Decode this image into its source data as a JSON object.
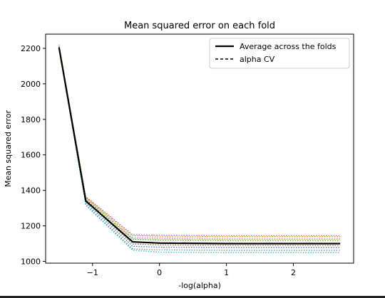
{
  "chart_data": {
    "type": "line",
    "title": "Mean squared error on each fold",
    "xlabel": "-log(alpha)",
    "ylabel": "Mean squared error",
    "xlim": [
      -1.7,
      2.9
    ],
    "ylim": [
      990,
      2280
    ],
    "xticks": [
      -1,
      0,
      1,
      2
    ],
    "xtick_labels": [
      "−1",
      "0",
      "1",
      "2"
    ],
    "yticks": [
      1000,
      1200,
      1400,
      1600,
      1800,
      2000,
      2200
    ],
    "yticks_labels": [
      "1000",
      "1200",
      "1400",
      "1600",
      "1800",
      "2000",
      "2200"
    ],
    "x": [
      -1.5,
      -1.1,
      -0.4,
      0.0,
      1.0,
      2.0,
      2.7
    ],
    "folds": [
      {
        "color": "#1f77b4",
        "values": [
          2200,
          1330,
          1085,
          1080,
          1078,
          1078,
          1078
        ]
      },
      {
        "color": "#ff7f0e",
        "values": [
          2215,
          1360,
          1145,
          1142,
          1140,
          1140,
          1140
        ]
      },
      {
        "color": "#2ca02c",
        "values": [
          2210,
          1350,
          1125,
          1120,
          1118,
          1118,
          1118
        ]
      },
      {
        "color": "#d62728",
        "values": [
          2205,
          1345,
          1110,
          1105,
          1103,
          1103,
          1103
        ]
      },
      {
        "color": "#9467bd",
        "values": [
          2212,
          1365,
          1150,
          1147,
          1145,
          1145,
          1145
        ]
      },
      {
        "color": "#8c564b",
        "values": [
          2203,
          1340,
          1098,
          1093,
          1090,
          1090,
          1090
        ]
      },
      {
        "color": "#e377c2",
        "values": [
          2208,
          1355,
          1135,
          1132,
          1130,
          1130,
          1130
        ]
      },
      {
        "color": "#7f7f7f",
        "values": [
          2198,
          1320,
          1070,
          1065,
          1062,
          1062,
          1062
        ]
      },
      {
        "color": "#bcbd22",
        "values": [
          2222,
          1362,
          1128,
          1126,
          1124,
          1124,
          1124
        ]
      },
      {
        "color": "#17becf",
        "values": [
          2196,
          1315,
          1063,
          1052,
          1049,
          1049,
          1049
        ]
      }
    ],
    "average": {
      "name": "Average across the folds",
      "color": "#000000",
      "values": [
        2205,
        1340,
        1110,
        1103,
        1100,
        1100,
        1100
      ]
    },
    "alpha_cv": {
      "name": "alpha CV",
      "color": "#000000"
    },
    "legend_position": "top-right"
  }
}
